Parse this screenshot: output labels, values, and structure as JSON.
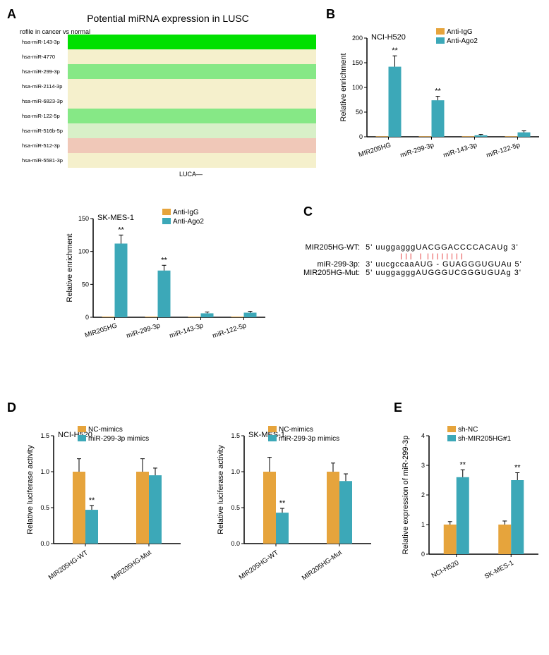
{
  "panelA": {
    "label": "A",
    "title": "Potential miRNA expression in LUSC",
    "subtitle": "rofile in cancer vs normal",
    "xlabel": "LUCA",
    "rows": [
      {
        "name": "hsa-miR-143-3p",
        "color": "#00e000"
      },
      {
        "name": "hsa-miR-4770",
        "color": "#f5f0cc"
      },
      {
        "name": "hsa-miR-299-3p",
        "color": "#86e886"
      },
      {
        "name": "hsa-miR-2114-3p",
        "color": "#f5f0cc"
      },
      {
        "name": "hsa-miR-6823-3p",
        "color": "#f5f0cc"
      },
      {
        "name": "hsa-miR-122-5p",
        "color": "#86e886"
      },
      {
        "name": "hsa-miR-516b-5p",
        "color": "#d8f0c8"
      },
      {
        "name": "hsa-miR-512-3p",
        "color": "#f0c8b8"
      },
      {
        "name": "hsa-miR-5581-3p",
        "color": "#f5f0cc"
      }
    ]
  },
  "panelB": {
    "label": "B",
    "charts": [
      {
        "title": "NCI-H520",
        "ylabel": "Relative enrichment",
        "ymax": 200,
        "ytick": 50,
        "legend": [
          {
            "label": "Anti-IgG",
            "color": "#e6a43c"
          },
          {
            "label": "Anti-Ago2",
            "color": "#3ca8b8"
          }
        ],
        "categories": [
          "MIR205HG",
          "miR-299-3p",
          "miR-143-3p",
          "miR-122-5p"
        ],
        "series1": [
          1,
          1,
          1,
          1
        ],
        "series2": [
          142,
          74,
          3,
          9
        ],
        "err2": [
          22,
          8,
          2,
          3
        ],
        "sig": [
          "**",
          "**",
          "",
          ""
        ]
      },
      {
        "title": "SK-MES-1",
        "ylabel": "Relative enrichment",
        "ymax": 150,
        "ytick": 50,
        "legend": [
          {
            "label": "Anti-IgG",
            "color": "#e6a43c"
          },
          {
            "label": "Anti-Ago2",
            "color": "#3ca8b8"
          }
        ],
        "categories": [
          "MIR205HG",
          "miR-299-3p",
          "miR-143-3p",
          "miR-122-5p"
        ],
        "series1": [
          1,
          1,
          1,
          1
        ],
        "series2": [
          112,
          71,
          6,
          7
        ],
        "err2": [
          13,
          8,
          2,
          2
        ],
        "sig": [
          "**",
          "**",
          "",
          ""
        ]
      }
    ]
  },
  "panelC": {
    "label": "C",
    "rows": [
      {
        "label": "MIR205HG-WT:",
        "prefix": "5' uuggaggg",
        "match": "UACGGACCCCACAU",
        "suffix": "g 3'"
      },
      {
        "label": "miR-299-3p:",
        "prefix": "3' uucgccaa",
        "match": "AUG - GUAGGGUGUA",
        "suffix": "u 5'"
      },
      {
        "label": "MIR205HG-Mut:",
        "prefix": "5' uuggaggg",
        "match": "AUGGGUCGGGUGUA",
        "suffix": "g 3'"
      }
    ]
  },
  "panelD": {
    "label": "D",
    "charts": [
      {
        "title": "NCI-H520",
        "ylabel": "Relative luciferase activity",
        "ymax": 1.5,
        "ytick": 0.5,
        "legend": [
          {
            "label": "NC-mimics",
            "color": "#e6a43c"
          },
          {
            "label": "miR-299-3p mimics",
            "color": "#3ca8b8"
          }
        ],
        "categories": [
          "MIR205HG-WT",
          "MIR205HG-Mut"
        ],
        "series1": [
          1.0,
          1.0
        ],
        "series2": [
          0.47,
          0.95
        ],
        "err1": [
          0.18,
          0.18
        ],
        "err2": [
          0.06,
          0.1
        ],
        "sig": [
          "**",
          ""
        ]
      },
      {
        "title": "SK-MES-1",
        "ylabel": "Relative luciferase activity",
        "ymax": 1.5,
        "ytick": 0.5,
        "legend": [
          {
            "label": "NC-mimics",
            "color": "#e6a43c"
          },
          {
            "label": "miR-299-3p mimics",
            "color": "#3ca8b8"
          }
        ],
        "categories": [
          "MIR205HG-WT",
          "MIR205HG-Mut"
        ],
        "series1": [
          1.0,
          1.0
        ],
        "series2": [
          0.43,
          0.87
        ],
        "err1": [
          0.2,
          0.12
        ],
        "err2": [
          0.06,
          0.1
        ],
        "sig": [
          "**",
          ""
        ]
      }
    ]
  },
  "panelE": {
    "label": "E",
    "chart": {
      "ylabel": "Relative expression of miR-299-3p",
      "ymax": 4,
      "ytick": 1,
      "legend": [
        {
          "label": "sh-NC",
          "color": "#e6a43c"
        },
        {
          "label": "sh-MIR205HG#1",
          "color": "#3ca8b8"
        }
      ],
      "categories": [
        "NCI-H520",
        "SK-MES-1"
      ],
      "series1": [
        1.0,
        1.0
      ],
      "series2": [
        2.6,
        2.5
      ],
      "err1": [
        0.1,
        0.12
      ],
      "err2": [
        0.25,
        0.25
      ],
      "sig": [
        "**",
        "**"
      ]
    }
  },
  "colors": {
    "orange": "#e6a43c",
    "teal": "#3ca8b8"
  }
}
